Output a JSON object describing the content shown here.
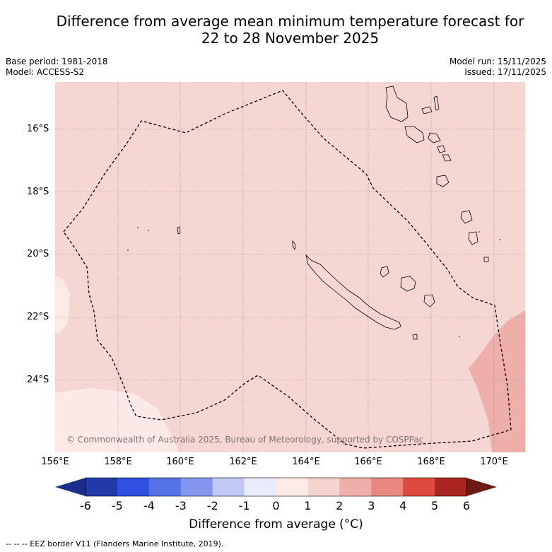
{
  "title_line1": "Difference from average mean minimum temperature forecast for",
  "title_line2": "22 to 28 November 2025",
  "meta": {
    "base_period": "Base period: 1981-2018",
    "model": "Model: ACCESS-S2",
    "model_run": "Model run: 15/11/2025",
    "issued": "Issued: 17/11/2025"
  },
  "map": {
    "lat_labels": [
      "16°S",
      "18°S",
      "20°S",
      "22°S",
      "24°S"
    ],
    "lon_labels": [
      "156°E",
      "158°E",
      "160°E",
      "162°E",
      "164°E",
      "166°E",
      "168°E",
      "170°E"
    ],
    "copyright": "© Commonwealth of Australia 2025, Bureau of Meteorology, supported by COSPPac",
    "colors": {
      "background": "#f5d6d3",
      "warm_strong": "#eeaeaa",
      "cool_light": "#fbe9e7"
    }
  },
  "colorbar": {
    "ticks": [
      "-6",
      "-5",
      "-4",
      "-3",
      "-2",
      "-1",
      "0",
      "1",
      "2",
      "3",
      "4",
      "5",
      "6"
    ],
    "colors": [
      "#1a2d8c",
      "#2239a8",
      "#3050e0",
      "#5673e6",
      "#8395ec",
      "#c1c8f4",
      "#e7ebfa",
      "#fdebe8",
      "#f5d4d0",
      "#eeaeaa",
      "#e8887e",
      "#de4a3e",
      "#aa2620",
      "#6e1a14"
    ],
    "title": "Difference from average (°C)"
  },
  "footer": "--  --  -- EEZ border V11 (Flanders Marine Institute, 2019)."
}
